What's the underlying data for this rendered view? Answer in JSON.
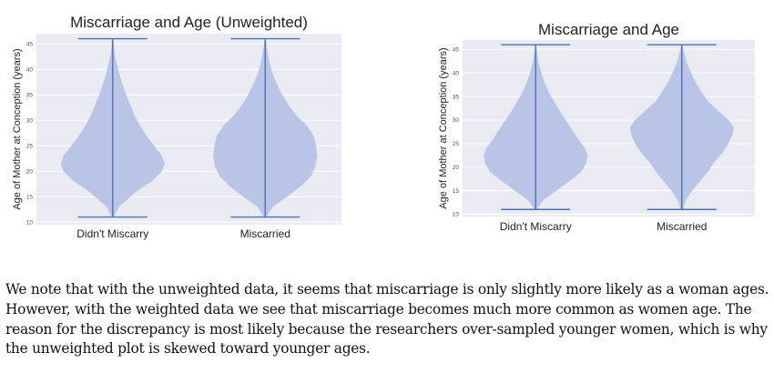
{
  "chart_data": [
    {
      "type": "violin",
      "title": "Miscarriage and Age (Unweighted)",
      "ylabel": "Age of Mother at Conception (years)",
      "xlabel": "",
      "categories": [
        "Didn't Miscarry",
        "Miscarried"
      ],
      "ylim": [
        9.5,
        47
      ],
      "yticks": [
        10,
        15,
        20,
        25,
        30,
        35,
        40,
        45
      ],
      "grid": true,
      "series": [
        {
          "category": "Didn't Miscarry",
          "min": 11,
          "max": 46,
          "density_profile": [
            [
              11,
              0.02
            ],
            [
              13,
              0.12
            ],
            [
              16,
              0.45
            ],
            [
              18,
              0.75
            ],
            [
              20,
              0.95
            ],
            [
              21.5,
              1.0
            ],
            [
              23,
              0.95
            ],
            [
              25,
              0.8
            ],
            [
              27,
              0.65
            ],
            [
              29,
              0.52
            ],
            [
              31,
              0.42
            ],
            [
              33,
              0.34
            ],
            [
              35,
              0.26
            ],
            [
              37,
              0.19
            ],
            [
              39,
              0.13
            ],
            [
              41,
              0.08
            ],
            [
              43,
              0.04
            ],
            [
              46,
              0.01
            ]
          ]
        },
        {
          "category": "Miscarried",
          "min": 11,
          "max": 46,
          "density_profile": [
            [
              11,
              0.02
            ],
            [
              13,
              0.15
            ],
            [
              15,
              0.42
            ],
            [
              17,
              0.68
            ],
            [
              19,
              0.88
            ],
            [
              21,
              0.97
            ],
            [
              23,
              1.0
            ],
            [
              25,
              0.98
            ],
            [
              27,
              0.93
            ],
            [
              29,
              0.8
            ],
            [
              31,
              0.6
            ],
            [
              33,
              0.45
            ],
            [
              35,
              0.33
            ],
            [
              37,
              0.23
            ],
            [
              39,
              0.15
            ],
            [
              41,
              0.09
            ],
            [
              43,
              0.05
            ],
            [
              46,
              0.01
            ]
          ]
        }
      ]
    },
    {
      "type": "violin",
      "title": "Miscarriage and Age",
      "ylabel": "Age of Mother at Conception (years)",
      "xlabel": "",
      "categories": [
        "Didn't Miscarry",
        "Miscarried"
      ],
      "ylim": [
        9.5,
        47
      ],
      "yticks": [
        10,
        15,
        20,
        25,
        30,
        35,
        40,
        45
      ],
      "grid": true,
      "series": [
        {
          "category": "Didn't Miscarry",
          "min": 11,
          "max": 46,
          "density_profile": [
            [
              11,
              0.02
            ],
            [
              13,
              0.15
            ],
            [
              15,
              0.4
            ],
            [
              17,
              0.65
            ],
            [
              19,
              0.88
            ],
            [
              21,
              0.98
            ],
            [
              22.5,
              1.0
            ],
            [
              24,
              0.95
            ],
            [
              26,
              0.82
            ],
            [
              28,
              0.7
            ],
            [
              30,
              0.58
            ],
            [
              32,
              0.46
            ],
            [
              34,
              0.35
            ],
            [
              36,
              0.25
            ],
            [
              38,
              0.17
            ],
            [
              40,
              0.11
            ],
            [
              42,
              0.06
            ],
            [
              44,
              0.03
            ],
            [
              46,
              0.01
            ]
          ]
        },
        {
          "category": "Miscarried",
          "min": 11,
          "max": 46,
          "density_profile": [
            [
              11,
              0.02
            ],
            [
              13,
              0.08
            ],
            [
              15,
              0.2
            ],
            [
              17,
              0.35
            ],
            [
              19,
              0.5
            ],
            [
              21,
              0.62
            ],
            [
              23,
              0.78
            ],
            [
              25,
              0.9
            ],
            [
              27,
              0.98
            ],
            [
              28.5,
              1.0
            ],
            [
              30,
              0.9
            ],
            [
              32,
              0.7
            ],
            [
              34,
              0.5
            ],
            [
              36,
              0.38
            ],
            [
              38,
              0.27
            ],
            [
              40,
              0.18
            ],
            [
              42,
              0.1
            ],
            [
              44,
              0.05
            ],
            [
              46,
              0.01
            ]
          ]
        }
      ]
    }
  ],
  "text": {
    "paragraph": "We note that with the unweighted data, it seems that miscarriage is only slightly more likely as a woman ages. However, with the weighted data we see that miscarriage becomes much more common as women age. The reason for the discrepancy is most likely because the researchers over-sampled younger women, which is why the unweighted plot is skewed toward younger ages."
  },
  "colors": {
    "plot_background": "#eaeaf2",
    "grid": "#ffffff",
    "violin_fill": "#b6c2e5",
    "violin_line": "#4c72b0"
  }
}
